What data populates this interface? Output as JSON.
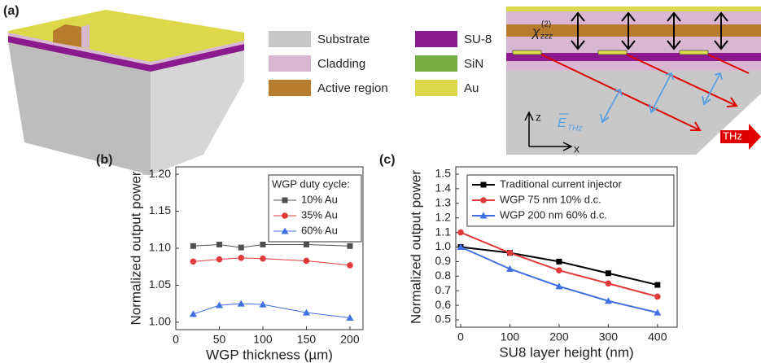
{
  "panel_a": {
    "label": "(a)",
    "legend": [
      {
        "name": "Substrate",
        "color": "#c8c8c8"
      },
      {
        "name": "Cladding",
        "color": "#d9b7d2"
      },
      {
        "name": "Active region",
        "color": "#b67b2c"
      },
      {
        "name": "SU-8",
        "color": "#8b1a8e"
      },
      {
        "name": "SiN",
        "color": "#78ad46"
      },
      {
        "name": "Au",
        "color": "#dcd84a"
      }
    ],
    "chi": "χ",
    "chi_sup": "(2)",
    "chi_sub": "zzz",
    "e_field": "E",
    "e_sub": "THz",
    "axis_z": "z",
    "axis_x": "x",
    "thz": "THz"
  },
  "chart_data": [
    {
      "type": "line",
      "panel": "(b)",
      "xlabel": "WGP thickness (µm)",
      "ylabel": "Normalized output power",
      "x": [
        20,
        50,
        75,
        100,
        150,
        200
      ],
      "series": [
        {
          "name": "10% Au",
          "color": "#505050",
          "marker": "square",
          "values": [
            1.103,
            1.105,
            1.101,
            1.105,
            1.105,
            1.103
          ]
        },
        {
          "name": "35% Au",
          "color": "#e03a3a",
          "marker": "circle",
          "values": [
            1.082,
            1.085,
            1.087,
            1.086,
            1.083,
            1.077
          ]
        },
        {
          "name": "60% Au",
          "color": "#3f6fe0",
          "marker": "triangle",
          "values": [
            1.011,
            1.023,
            1.025,
            1.024,
            1.013,
            1.006
          ]
        }
      ],
      "legend_title": "WGP duty cycle:",
      "legend": "upper right",
      "xlim": [
        0,
        215
      ],
      "xticks": [
        0,
        50,
        100,
        150,
        200
      ],
      "ylim": [
        0.99,
        1.21
      ],
      "yticks": [
        {
          "value": 1,
          "label": "1.00"
        },
        1.05,
        {
          "value": 1.1,
          "label": "1.10"
        },
        1.15,
        {
          "value": 1.2,
          "label": "1.20"
        }
      ]
    },
    {
      "type": "line",
      "panel": "(c)",
      "xlabel": "SU8 layer height (nm)",
      "ylabel": "Normalized output power",
      "x": [
        0,
        100,
        200,
        300,
        400
      ],
      "series": [
        {
          "name": "Traditional current injector",
          "color": "#000000",
          "marker": "square",
          "values": [
            1.0,
            0.96,
            0.9,
            0.82,
            0.74
          ]
        },
        {
          "name": "WGP 75 nm 10% d.c.",
          "color": "#e03a3a",
          "marker": "circle",
          "values": [
            1.1,
            0.96,
            0.84,
            0.75,
            0.66
          ]
        },
        {
          "name": "WGP 200 nm 60% d.c.",
          "color": "#3f6fe0",
          "marker": "triangle",
          "values": [
            1.0,
            0.85,
            0.73,
            0.63,
            0.55
          ]
        }
      ],
      "legend": "upper left",
      "xlim": [
        -10,
        440
      ],
      "xticks": [
        0,
        100,
        200,
        300,
        400
      ],
      "ylim": [
        0.45,
        1.55
      ],
      "yticks": [
        0.5,
        0.6,
        0.7,
        0.8,
        0.9,
        {
          "value": 1,
          "label": "1.0"
        },
        1.1,
        1.2,
        1.3,
        1.4,
        1.5
      ]
    }
  ]
}
